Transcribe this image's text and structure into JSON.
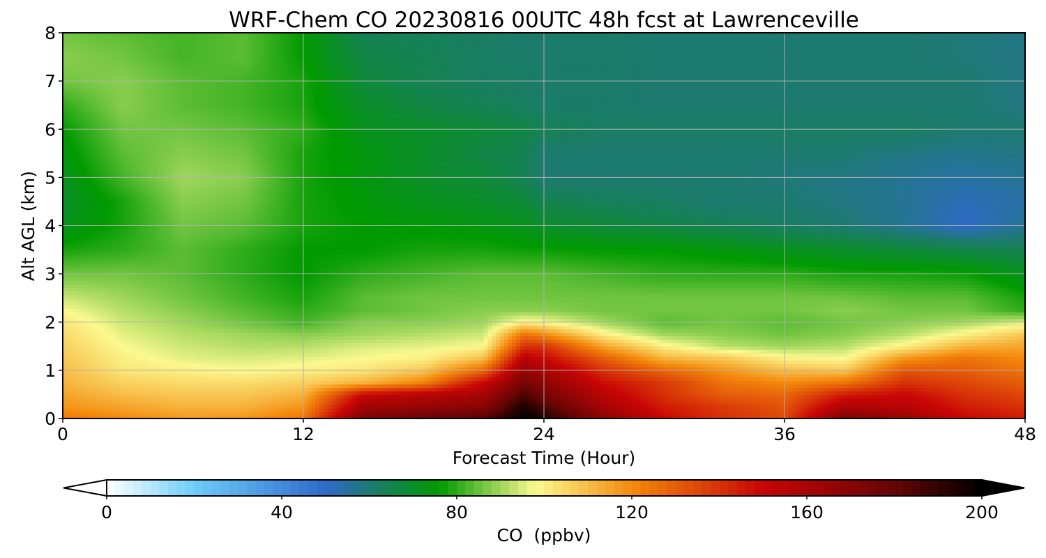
{
  "chart_data": {
    "type": "heatmap",
    "title": "WRF-Chem CO  20230816 00UTC 48h fcst at Lawrenceville",
    "xlabel": "Forecast Time (Hour)",
    "ylabel": "Alt AGL (km)",
    "xlim": [
      0,
      48
    ],
    "ylim": [
      0,
      8
    ],
    "x_ticks": [
      0,
      12,
      24,
      36,
      48
    ],
    "y_ticks": [
      0,
      1,
      2,
      3,
      4,
      5,
      6,
      7,
      8
    ],
    "grid": true,
    "x": [
      0,
      3,
      6,
      9,
      12,
      15,
      18,
      21,
      23,
      24,
      27,
      30,
      33,
      36,
      39,
      42,
      45,
      48
    ],
    "y": [
      0,
      0.25,
      0.5,
      0.75,
      1.0,
      1.25,
      1.5,
      1.75,
      2.0,
      2.25,
      2.5,
      3.0,
      3.5,
      4.0,
      4.5,
      5.0,
      5.5,
      6.0,
      6.5,
      7.0,
      7.5,
      8.0
    ],
    "values_ppbv": [
      [
        125,
        120,
        117,
        118,
        125,
        175,
        180,
        185,
        200,
        195,
        170,
        150,
        140,
        135,
        175,
        165,
        150,
        145
      ],
      [
        118,
        115,
        112,
        112,
        118,
        162,
        165,
        170,
        195,
        185,
        160,
        145,
        138,
        132,
        158,
        155,
        145,
        140
      ],
      [
        115,
        110,
        108,
        108,
        112,
        150,
        155,
        160,
        185,
        175,
        155,
        140,
        130,
        128,
        145,
        150,
        140,
        135
      ],
      [
        112,
        106,
        104,
        104,
        106,
        112,
        122,
        150,
        175,
        168,
        148,
        138,
        125,
        120,
        125,
        140,
        135,
        130
      ],
      [
        110,
        102,
        100,
        98,
        100,
        102,
        108,
        128,
        165,
        160,
        140,
        128,
        118,
        110,
        108,
        132,
        130,
        125
      ],
      [
        108,
        100,
        96,
        95,
        96,
        98,
        100,
        110,
        155,
        150,
        130,
        112,
        108,
        100,
        98,
        118,
        125,
        120
      ],
      [
        106,
        98,
        94,
        92,
        92,
        95,
        96,
        98,
        140,
        140,
        115,
        100,
        92,
        90,
        92,
        100,
        112,
        115
      ],
      [
        104,
        96,
        92,
        90,
        88,
        90,
        92,
        94,
        125,
        120,
        100,
        90,
        88,
        86,
        88,
        92,
        100,
        108
      ],
      [
        102,
        94,
        90,
        86,
        82,
        88,
        88,
        90,
        100,
        98,
        90,
        84,
        86,
        84,
        86,
        88,
        90,
        95
      ],
      [
        98,
        92,
        88,
        84,
        80,
        84,
        86,
        88,
        88,
        88,
        86,
        86,
        86,
        86,
        88,
        86,
        86,
        80
      ],
      [
        94,
        90,
        86,
        82,
        78,
        84,
        86,
        86,
        86,
        86,
        86,
        86,
        86,
        86,
        86,
        84,
        84,
        78
      ],
      [
        86,
        86,
        84,
        80,
        76,
        80,
        82,
        84,
        84,
        84,
        82,
        80,
        80,
        80,
        78,
        78,
        77,
        72
      ],
      [
        78,
        80,
        84,
        80,
        76,
        76,
        78,
        78,
        77,
        77,
        76,
        76,
        74,
        72,
        70,
        68,
        66,
        64
      ],
      [
        72,
        78,
        86,
        84,
        78,
        76,
        75,
        74,
        72,
        70,
        68,
        66,
        64,
        62,
        60,
        56,
        50,
        56
      ],
      [
        70,
        78,
        88,
        86,
        78,
        75,
        72,
        70,
        68,
        65,
        63,
        62,
        60,
        60,
        58,
        56,
        52,
        54
      ],
      [
        72,
        82,
        90,
        88,
        78,
        74,
        70,
        68,
        64,
        60,
        60,
        60,
        60,
        59,
        58,
        56,
        54,
        56
      ],
      [
        74,
        84,
        88,
        86,
        78,
        74,
        70,
        66,
        64,
        60,
        60,
        60,
        60,
        60,
        60,
        58,
        57,
        58
      ],
      [
        76,
        86,
        86,
        84,
        80,
        72,
        70,
        68,
        66,
        64,
        62,
        62,
        62,
        62,
        62,
        62,
        60,
        60
      ],
      [
        80,
        88,
        84,
        82,
        78,
        70,
        66,
        64,
        62,
        61,
        61,
        60,
        60,
        60,
        60,
        60,
        60,
        58
      ],
      [
        86,
        88,
        84,
        82,
        78,
        68,
        64,
        62,
        62,
        61,
        61,
        60,
        60,
        60,
        60,
        60,
        60,
        58
      ],
      [
        88,
        86,
        82,
        84,
        76,
        66,
        64,
        62,
        61,
        61,
        61,
        60,
        60,
        60,
        60,
        60,
        59,
        58
      ],
      [
        86,
        84,
        82,
        84,
        76,
        64,
        63,
        62,
        61,
        61,
        61,
        60,
        60,
        60,
        60,
        60,
        59,
        58
      ]
    ],
    "colorbar": {
      "label": "CO  (ppbv)",
      "min": 0,
      "max": 200,
      "ticks": [
        0,
        40,
        80,
        120,
        160,
        200
      ],
      "extend": "both",
      "steps": 100,
      "stops": [
        {
          "v": 0,
          "c": "#ffffff"
        },
        {
          "v": 20,
          "c": "#6ecdfa"
        },
        {
          "v": 50,
          "c": "#2f6ac9"
        },
        {
          "v": 60,
          "c": "#1d7a70"
        },
        {
          "v": 76,
          "c": "#009a00"
        },
        {
          "v": 98,
          "c": "#fbf98f"
        },
        {
          "v": 120,
          "c": "#f48a0c"
        },
        {
          "v": 150,
          "c": "#c80505"
        },
        {
          "v": 180,
          "c": "#660505"
        },
        {
          "v": 200,
          "c": "#000000"
        }
      ]
    }
  }
}
